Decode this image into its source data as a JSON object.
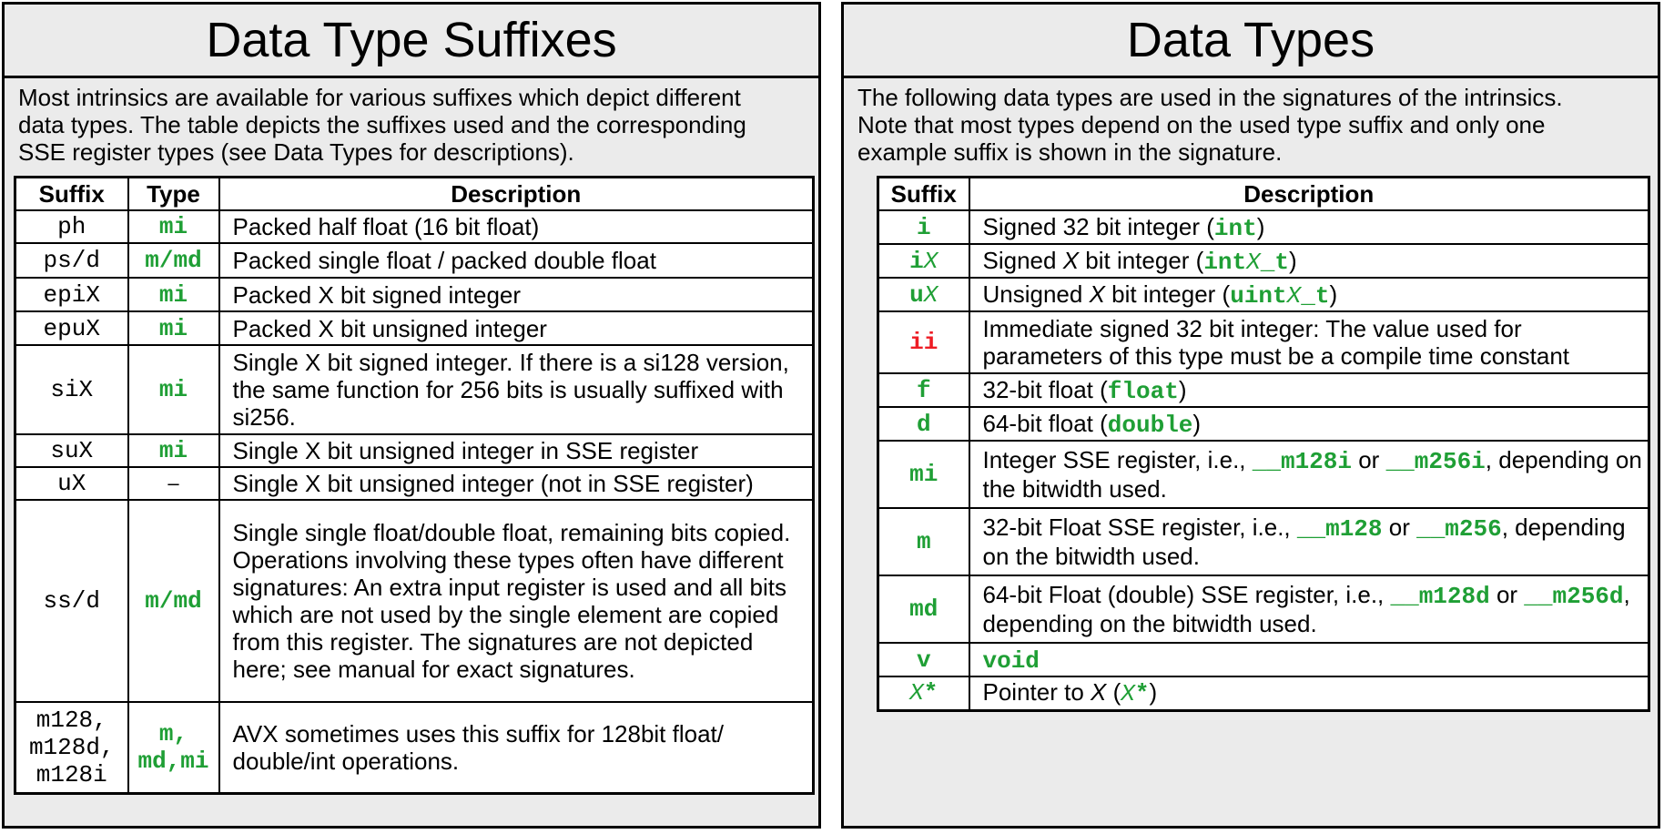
{
  "left": {
    "title": "Data Type Suffixes",
    "intro": [
      "Most intrinsics are available for various suffixes which depict different",
      "data types. The table depicts the suffixes used and the corresponding",
      "SSE register types (see Data Types for descriptions)."
    ],
    "headers": {
      "suffix": "Suffix",
      "type": "Type",
      "description": "Description"
    },
    "rows": [
      {
        "suffix": "ph",
        "type": "mi",
        "desc": "Packed half float (16 bit float)"
      },
      {
        "suffix": "ps/d",
        "type": "m/md",
        "desc": "Packed single float / packed double float"
      },
      {
        "suffix": "epiX",
        "type": "mi",
        "desc": "Packed X bit signed integer"
      },
      {
        "suffix": "epuX",
        "type": "mi",
        "desc": "Packed X bit unsigned integer"
      },
      {
        "suffix": "siX",
        "type": "mi",
        "desc": "Single X bit signed integer. If there is a si128 version, the same function for 256 bits is usually suffixed with si256."
      },
      {
        "suffix": "suX",
        "type": "mi",
        "desc": "Single X bit unsigned integer in SSE register"
      },
      {
        "suffix": "uX",
        "type": "–",
        "desc": "Single X bit unsigned integer (not in SSE register)"
      },
      {
        "suffix": "ss/d",
        "type": "m/md",
        "desc": "Single single float/double float, remaining bits copied. Operations involving these types often have different signatures: An extra input register is used and all bits which are not used by the single element are copied from this register. The signatures are not depicted here; see manual for exact signatures."
      },
      {
        "suffix_lines": [
          "m128,",
          "m128d,",
          "m128i"
        ],
        "type_lines": [
          "m,",
          "md,mi"
        ],
        "desc": "AVX sometimes uses this suffix for 128bit float/ double/int operations."
      }
    ]
  },
  "right": {
    "title": "Data Types",
    "intro": [
      "The following data types are used in the signatures of the intrinsics.",
      "Note that most types depend on the used type suffix and only one",
      "example suffix is shown in the signature."
    ],
    "headers": {
      "suffix": "Suffix",
      "description": "Description"
    },
    "rows": {
      "i": {
        "suffix": "i",
        "d1": "Signed 32 bit integer (",
        "c1": "int",
        "d2": ")"
      },
      "iX": {
        "s1": "i",
        "s2": "X",
        "d1": "Signed ",
        "x": "X",
        "d2": " bit integer (",
        "c1": "int",
        "cx": "X",
        "c2": "_t",
        "d3": ")"
      },
      "uX": {
        "s1": "u",
        "s2": "X",
        "d1": "Unsigned ",
        "x": "X",
        "d2": " bit integer (",
        "c1": "uint",
        "cx": "X",
        "c2": "_t",
        "d3": ")"
      },
      "ii": {
        "suffix": "ii",
        "desc": "Immediate signed 32 bit integer: The value used for parameters of this type must be a compile time constant"
      },
      "f": {
        "suffix": "f",
        "d1": "32-bit float (",
        "c1": "float",
        "d2": ")"
      },
      "d": {
        "suffix": "d",
        "d1": "64-bit float (",
        "c1": "double",
        "d2": ")"
      },
      "mi": {
        "suffix": "mi",
        "d1": "Integer SSE register, i.e., ",
        "c1": "__m128i",
        "d2": " or ",
        "c2": "__m256i",
        "d3": ", depending on the bitwidth used."
      },
      "m": {
        "suffix": "m",
        "d1": "32-bit Float SSE register, i.e., ",
        "c1": "__m128",
        "d2": " or ",
        "c2": "__m256",
        "d3": ", depending on the bitwidth used."
      },
      "md": {
        "suffix": "md",
        "d1": "64-bit Float (double) SSE register, i.e., ",
        "c1": "__m128d",
        "d2": " or ",
        "c2": "__m256d",
        "d3": ", depending on the bitwidth used."
      },
      "v": {
        "suffix": "v",
        "c1": "void"
      },
      "ptr": {
        "s1": "X",
        "s2": "*",
        "d1": "Pointer to ",
        "x": "X",
        "d2": " (",
        "cx": "X",
        "c1": "*",
        "d3": ")"
      }
    }
  },
  "colors": {
    "code_green": "#1f9f35",
    "immediate_red": "#ee1c24",
    "panel_bg": "#ebebeb"
  }
}
